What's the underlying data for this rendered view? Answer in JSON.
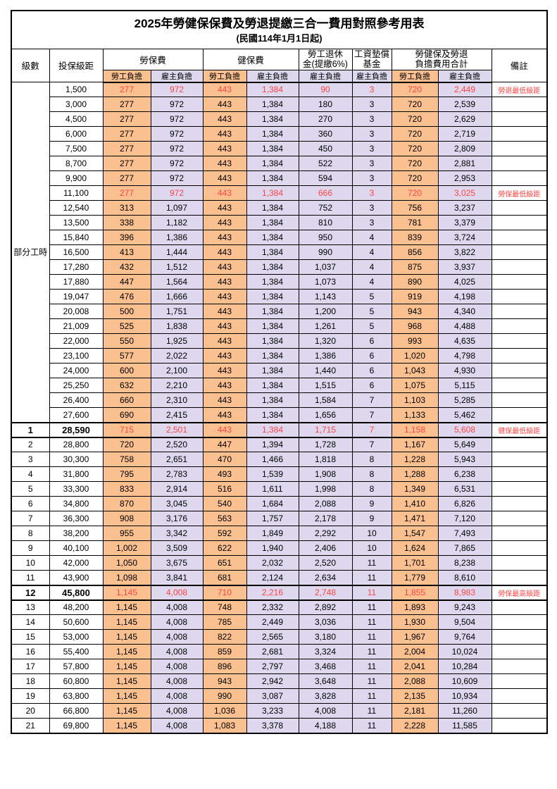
{
  "page": {
    "title": "2025年勞健保保費及勞退提繳三合一費用對照參考用表",
    "subtitle": "(民國114年1月1日起)"
  },
  "headers": {
    "level": "級數",
    "bracket": "投保級距",
    "labor": "勞保費",
    "health": "健保費",
    "pension": "勞工退休\n金(提繳6%)",
    "fund": "工資墊償\n基金",
    "total": "勞健保及勞退\n負擔費用合計",
    "remark": "備註",
    "employee": "勞工負擔",
    "employer": "雇主負擔"
  },
  "colors": {
    "employee_bg": "#FAC090",
    "employer_bg": "#DDD8EE",
    "highlight_text": "#FF4444",
    "remark_text": "#FF0000"
  },
  "rows": [
    {
      "level": "部分工時",
      "rowspan": 23,
      "bracket": "1,500",
      "cells": [
        "277",
        "972",
        "443",
        "1,384",
        "90",
        "3",
        "720",
        "2,449"
      ],
      "remark": "勞退最低級距",
      "red": true
    },
    {
      "bracket": "3,000",
      "cells": [
        "277",
        "972",
        "443",
        "1,384",
        "180",
        "3",
        "720",
        "2,539"
      ]
    },
    {
      "bracket": "4,500",
      "cells": [
        "277",
        "972",
        "443",
        "1,384",
        "270",
        "3",
        "720",
        "2,629"
      ]
    },
    {
      "bracket": "6,000",
      "cells": [
        "277",
        "972",
        "443",
        "1,384",
        "360",
        "3",
        "720",
        "2,719"
      ]
    },
    {
      "bracket": "7,500",
      "cells": [
        "277",
        "972",
        "443",
        "1,384",
        "450",
        "3",
        "720",
        "2,809"
      ]
    },
    {
      "bracket": "8,700",
      "cells": [
        "277",
        "972",
        "443",
        "1,384",
        "522",
        "3",
        "720",
        "2,881"
      ]
    },
    {
      "bracket": "9,900",
      "cells": [
        "277",
        "972",
        "443",
        "1,384",
        "594",
        "3",
        "720",
        "2,953"
      ]
    },
    {
      "bracket": "11,100",
      "cells": [
        "277",
        "972",
        "443",
        "1,384",
        "666",
        "3",
        "720",
        "3,025"
      ],
      "remark": "勞保最低級距",
      "red": true
    },
    {
      "bracket": "12,540",
      "cells": [
        "313",
        "1,097",
        "443",
        "1,384",
        "752",
        "3",
        "756",
        "3,237"
      ]
    },
    {
      "bracket": "13,500",
      "cells": [
        "338",
        "1,182",
        "443",
        "1,384",
        "810",
        "3",
        "781",
        "3,379"
      ]
    },
    {
      "bracket": "15,840",
      "cells": [
        "396",
        "1,386",
        "443",
        "1,384",
        "950",
        "4",
        "839",
        "3,724"
      ]
    },
    {
      "bracket": "16,500",
      "cells": [
        "413",
        "1,444",
        "443",
        "1,384",
        "990",
        "4",
        "856",
        "3,822"
      ]
    },
    {
      "bracket": "17,280",
      "cells": [
        "432",
        "1,512",
        "443",
        "1,384",
        "1,037",
        "4",
        "875",
        "3,937"
      ]
    },
    {
      "bracket": "17,880",
      "cells": [
        "447",
        "1,564",
        "443",
        "1,384",
        "1,073",
        "4",
        "890",
        "4,025"
      ]
    },
    {
      "bracket": "19,047",
      "cells": [
        "476",
        "1,666",
        "443",
        "1,384",
        "1,143",
        "5",
        "919",
        "4,198"
      ]
    },
    {
      "bracket": "20,008",
      "cells": [
        "500",
        "1,751",
        "443",
        "1,384",
        "1,200",
        "5",
        "943",
        "4,340"
      ]
    },
    {
      "bracket": "21,009",
      "cells": [
        "525",
        "1,838",
        "443",
        "1,384",
        "1,261",
        "5",
        "968",
        "4,488"
      ]
    },
    {
      "bracket": "22,000",
      "cells": [
        "550",
        "1,925",
        "443",
        "1,384",
        "1,320",
        "6",
        "993",
        "4,635"
      ]
    },
    {
      "bracket": "23,100",
      "cells": [
        "577",
        "2,022",
        "443",
        "1,384",
        "1,386",
        "6",
        "1,020",
        "4,798"
      ]
    },
    {
      "bracket": "24,000",
      "cells": [
        "600",
        "2,100",
        "443",
        "1,384",
        "1,440",
        "6",
        "1,043",
        "4,930"
      ]
    },
    {
      "bracket": "25,250",
      "cells": [
        "632",
        "2,210",
        "443",
        "1,384",
        "1,515",
        "6",
        "1,075",
        "5,115"
      ]
    },
    {
      "bracket": "26,400",
      "cells": [
        "660",
        "2,310",
        "443",
        "1,384",
        "1,584",
        "7",
        "1,103",
        "5,285"
      ]
    },
    {
      "bracket": "27,600",
      "cells": [
        "690",
        "2,415",
        "443",
        "1,384",
        "1,656",
        "7",
        "1,133",
        "5,462"
      ]
    },
    {
      "level": "1",
      "bracket": "28,590",
      "cells": [
        "715",
        "2,501",
        "443",
        "1,384",
        "1,715",
        "7",
        "1,158",
        "5,608"
      ],
      "remark": "健保最低級距",
      "red": true,
      "bold": true,
      "thick": true
    },
    {
      "level": "2",
      "bracket": "28,800",
      "cells": [
        "720",
        "2,520",
        "447",
        "1,394",
        "1,728",
        "7",
        "1,167",
        "5,649"
      ]
    },
    {
      "level": "3",
      "bracket": "30,300",
      "cells": [
        "758",
        "2,651",
        "470",
        "1,466",
        "1,818",
        "8",
        "1,228",
        "5,943"
      ]
    },
    {
      "level": "4",
      "bracket": "31,800",
      "cells": [
        "795",
        "2,783",
        "493",
        "1,539",
        "1,908",
        "8",
        "1,288",
        "6,238"
      ]
    },
    {
      "level": "5",
      "bracket": "33,300",
      "cells": [
        "833",
        "2,914",
        "516",
        "1,611",
        "1,998",
        "8",
        "1,349",
        "6,531"
      ]
    },
    {
      "level": "6",
      "bracket": "34,800",
      "cells": [
        "870",
        "3,045",
        "540",
        "1,684",
        "2,088",
        "9",
        "1,410",
        "6,826"
      ]
    },
    {
      "level": "7",
      "bracket": "36,300",
      "cells": [
        "908",
        "3,176",
        "563",
        "1,757",
        "2,178",
        "9",
        "1,471",
        "7,120"
      ]
    },
    {
      "level": "8",
      "bracket": "38,200",
      "cells": [
        "955",
        "3,342",
        "592",
        "1,849",
        "2,292",
        "10",
        "1,547",
        "7,493"
      ]
    },
    {
      "level": "9",
      "bracket": "40,100",
      "cells": [
        "1,002",
        "3,509",
        "622",
        "1,940",
        "2,406",
        "10",
        "1,624",
        "7,865"
      ]
    },
    {
      "level": "10",
      "bracket": "42,000",
      "cells": [
        "1,050",
        "3,675",
        "651",
        "2,032",
        "2,520",
        "11",
        "1,701",
        "8,238"
      ]
    },
    {
      "level": "11",
      "bracket": "43,900",
      "cells": [
        "1,098",
        "3,841",
        "681",
        "2,124",
        "2,634",
        "11",
        "1,779",
        "8,610"
      ]
    },
    {
      "level": "12",
      "bracket": "45,800",
      "cells": [
        "1,145",
        "4,008",
        "710",
        "2,216",
        "2,748",
        "11",
        "1,855",
        "8,983"
      ],
      "remark": "勞保最高級距",
      "red": true,
      "bold": true,
      "thick": true
    },
    {
      "level": "13",
      "bracket": "48,200",
      "cells": [
        "1,145",
        "4,008",
        "748",
        "2,332",
        "2,892",
        "11",
        "1,893",
        "9,243"
      ]
    },
    {
      "level": "14",
      "bracket": "50,600",
      "cells": [
        "1,145",
        "4,008",
        "785",
        "2,449",
        "3,036",
        "11",
        "1,930",
        "9,504"
      ]
    },
    {
      "level": "15",
      "bracket": "53,000",
      "cells": [
        "1,145",
        "4,008",
        "822",
        "2,565",
        "3,180",
        "11",
        "1,967",
        "9,764"
      ]
    },
    {
      "level": "16",
      "bracket": "55,400",
      "cells": [
        "1,145",
        "4,008",
        "859",
        "2,681",
        "3,324",
        "11",
        "2,004",
        "10,024"
      ]
    },
    {
      "level": "17",
      "bracket": "57,800",
      "cells": [
        "1,145",
        "4,008",
        "896",
        "2,797",
        "3,468",
        "11",
        "2,041",
        "10,284"
      ]
    },
    {
      "level": "18",
      "bracket": "60,800",
      "cells": [
        "1,145",
        "4,008",
        "943",
        "2,942",
        "3,648",
        "11",
        "2,088",
        "10,609"
      ]
    },
    {
      "level": "19",
      "bracket": "63,800",
      "cells": [
        "1,145",
        "4,008",
        "990",
        "3,087",
        "3,828",
        "11",
        "2,135",
        "10,934"
      ]
    },
    {
      "level": "20",
      "bracket": "66,800",
      "cells": [
        "1,145",
        "4,008",
        "1,036",
        "3,233",
        "4,008",
        "11",
        "2,181",
        "11,260"
      ]
    },
    {
      "level": "21",
      "bracket": "69,800",
      "cells": [
        "1,145",
        "4,008",
        "1,083",
        "3,378",
        "4,188",
        "11",
        "2,228",
        "11,585"
      ]
    }
  ]
}
